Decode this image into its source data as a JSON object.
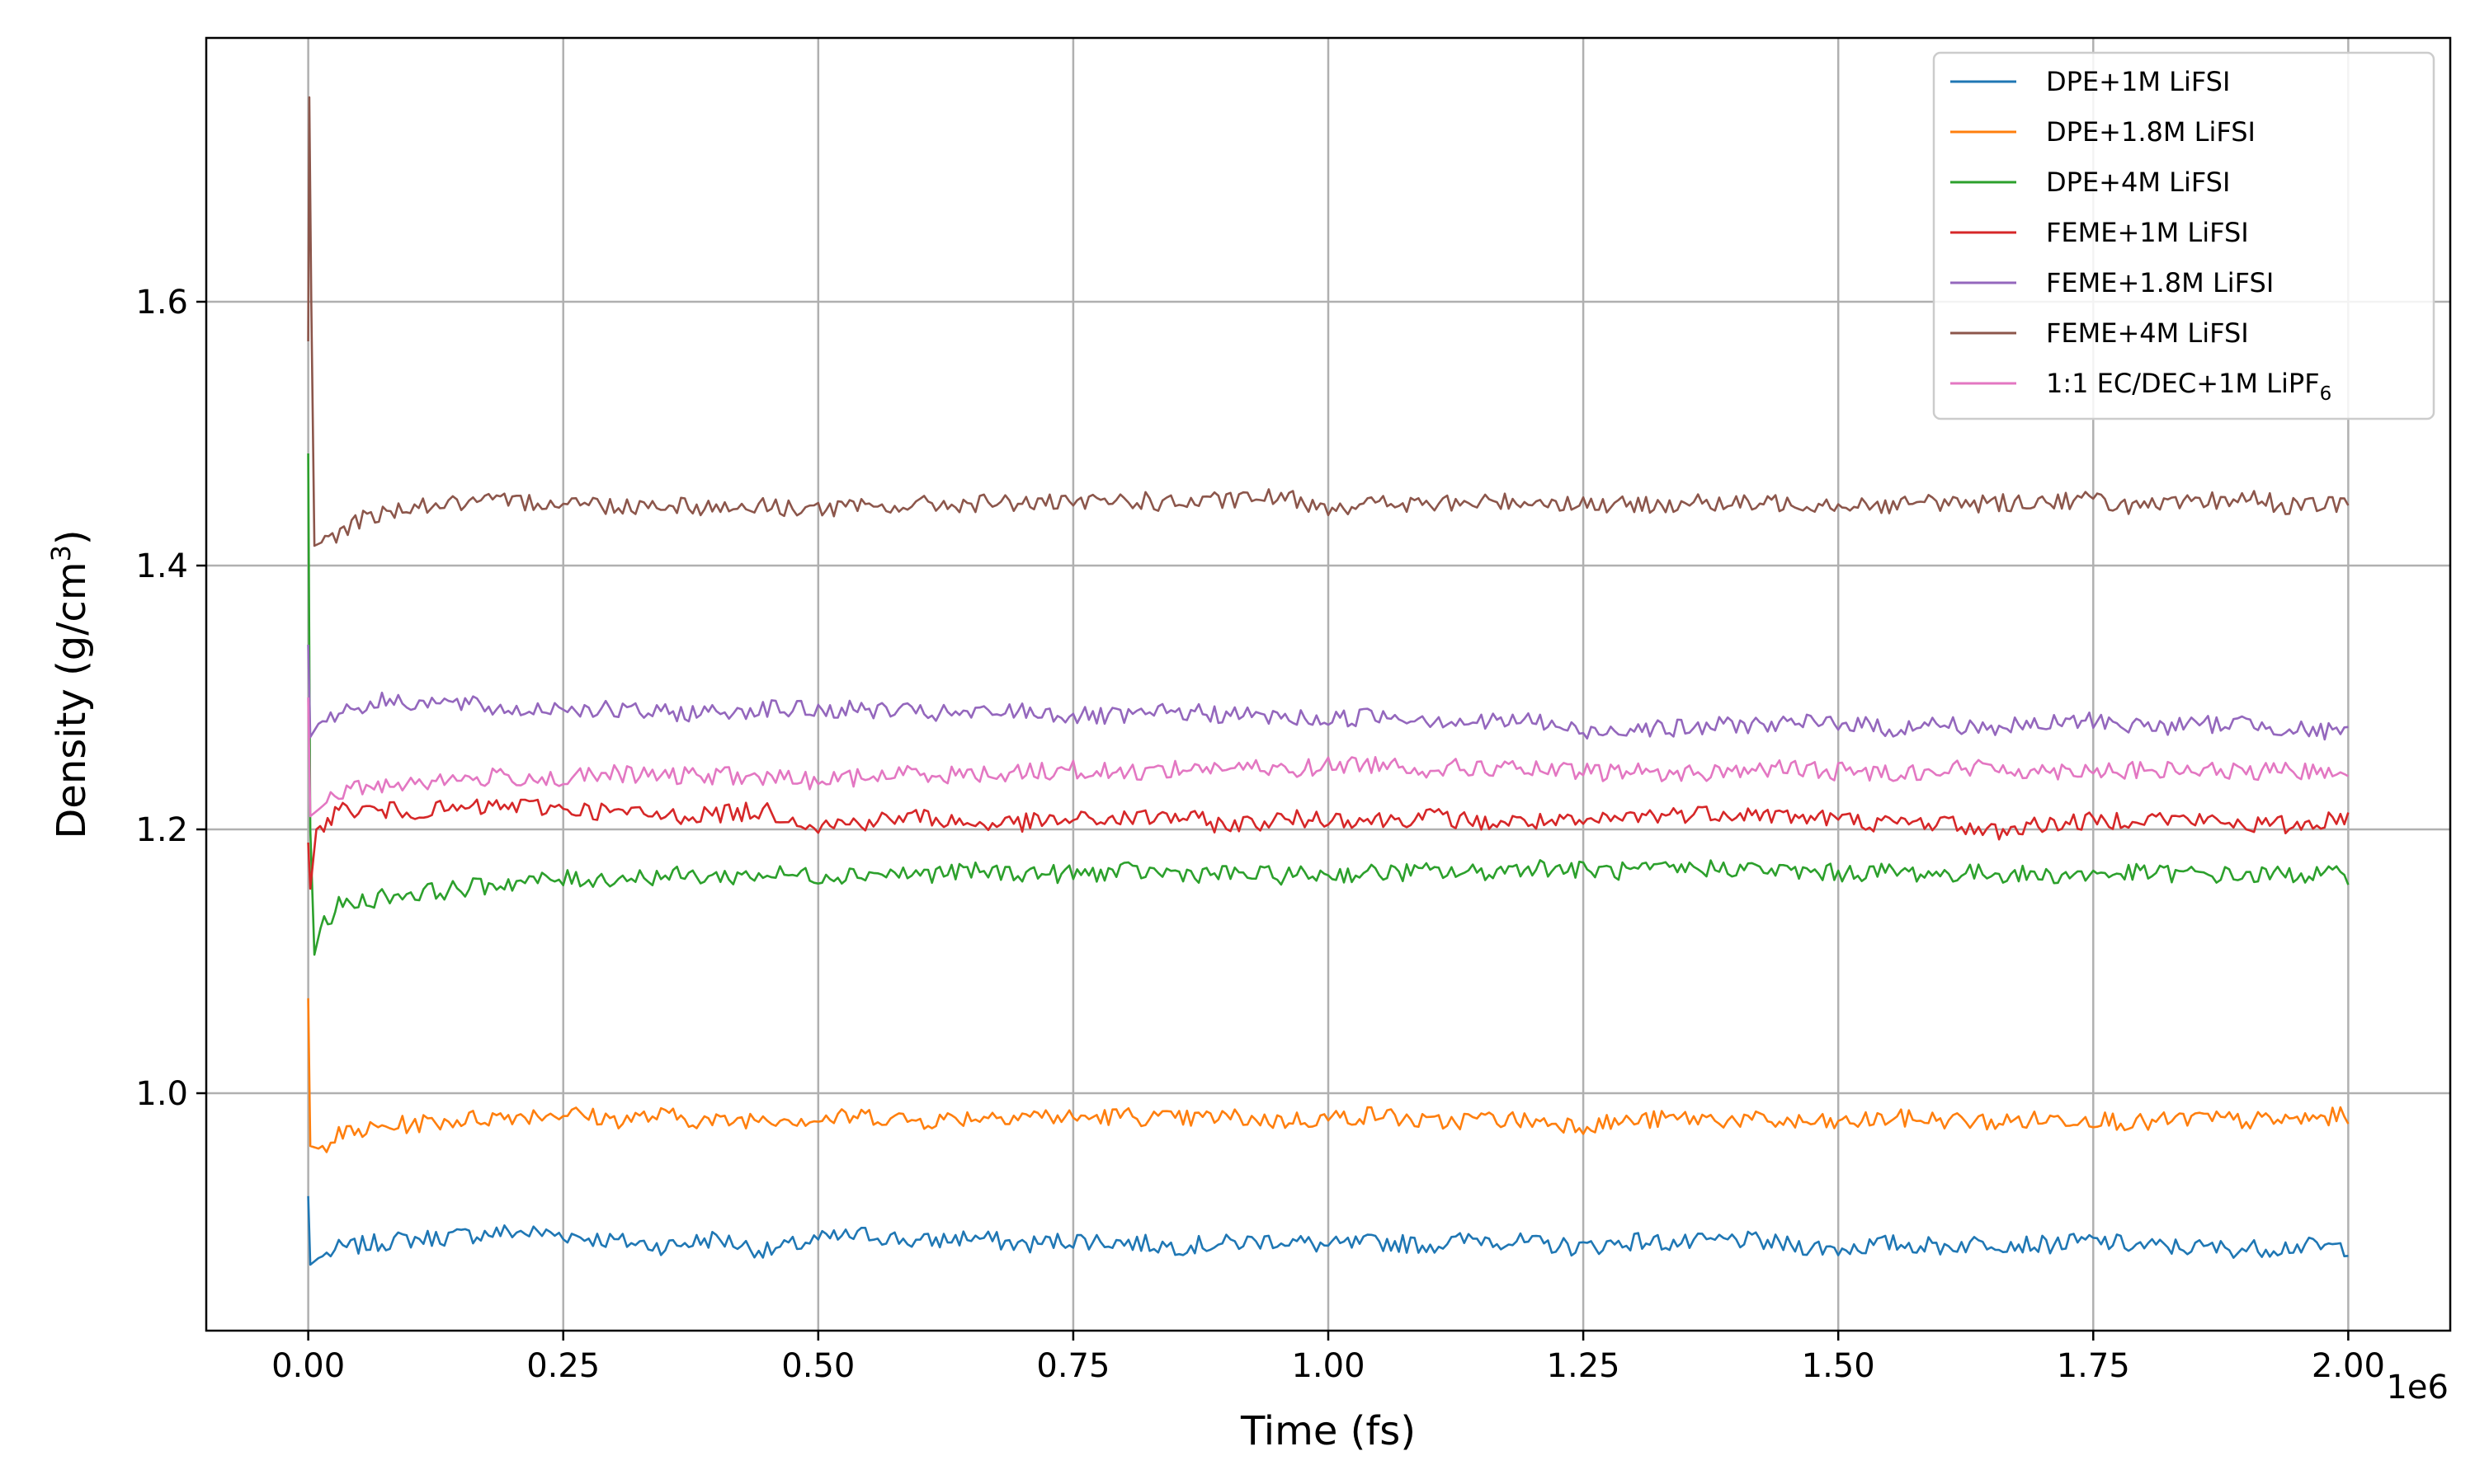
{
  "chart_data": {
    "type": "line",
    "title": "",
    "xlabel": "Time (fs)",
    "ylabel_main": "Density (g/cm",
    "ylabel_sup": "3",
    "ylabel_end": ")",
    "x_offset_label": "1e6",
    "xlim": [
      -0.1,
      2.1
    ],
    "ylim": [
      0.82,
      1.8
    ],
    "x_ticks": [
      {
        "value": 0.0,
        "label": "0.00"
      },
      {
        "value": 0.25,
        "label": "0.25"
      },
      {
        "value": 0.5,
        "label": "0.50"
      },
      {
        "value": 0.75,
        "label": "0.75"
      },
      {
        "value": 1.0,
        "label": "1.00"
      },
      {
        "value": 1.25,
        "label": "1.25"
      },
      {
        "value": 1.5,
        "label": "1.50"
      },
      {
        "value": 1.75,
        "label": "1.75"
      },
      {
        "value": 2.0,
        "label": "2.00"
      }
    ],
    "y_ticks": [
      {
        "value": 1.0,
        "label": "1.0"
      },
      {
        "value": 1.2,
        "label": "1.2"
      },
      {
        "value": 1.4,
        "label": "1.4"
      },
      {
        "value": 1.6,
        "label": "1.6"
      }
    ],
    "grid": true,
    "legend_position": "top-right",
    "series": [
      {
        "name": "DPE+1M LiFSI",
        "color": "#1f77b4",
        "x": [
          0,
          0.002,
          0.01,
          0.03,
          0.08,
          0.15,
          0.2,
          0.25,
          0.3,
          0.35,
          0.4,
          0.45,
          0.5,
          0.55,
          0.6,
          0.65,
          0.7,
          0.75,
          0.8,
          0.85,
          0.9,
          0.95,
          1.0,
          1.05,
          1.1,
          1.15,
          1.2,
          1.25,
          1.3,
          1.35,
          1.4,
          1.45,
          1.5,
          1.55,
          1.6,
          1.65,
          1.7,
          1.75,
          1.8,
          1.85,
          1.9,
          1.95,
          2.0
        ],
        "y": [
          0.922,
          0.87,
          0.875,
          0.882,
          0.888,
          0.892,
          0.895,
          0.893,
          0.888,
          0.884,
          0.89,
          0.88,
          0.889,
          0.893,
          0.887,
          0.891,
          0.885,
          0.889,
          0.887,
          0.884,
          0.886,
          0.889,
          0.884,
          0.887,
          0.885,
          0.89,
          0.886,
          0.883,
          0.888,
          0.886,
          0.889,
          0.885,
          0.882,
          0.886,
          0.884,
          0.887,
          0.885,
          0.888,
          0.884,
          0.883,
          0.882,
          0.884,
          0.883
        ]
      },
      {
        "name": "DPE+1.8M LiFSI",
        "color": "#ff7f0e",
        "x": [
          0,
          0.002,
          0.01,
          0.03,
          0.08,
          0.15,
          0.2,
          0.25,
          0.3,
          0.35,
          0.4,
          0.45,
          0.5,
          0.55,
          0.6,
          0.65,
          0.7,
          0.75,
          0.8,
          0.85,
          0.9,
          0.95,
          1.0,
          1.05,
          1.1,
          1.15,
          1.2,
          1.25,
          1.3,
          1.35,
          1.4,
          1.45,
          1.5,
          1.55,
          1.6,
          1.65,
          1.7,
          1.75,
          1.8,
          1.85,
          1.9,
          1.95,
          2.0
        ],
        "y": [
          1.072,
          0.96,
          0.958,
          0.968,
          0.975,
          0.98,
          0.983,
          0.985,
          0.98,
          0.983,
          0.978,
          0.982,
          0.98,
          0.983,
          0.979,
          0.982,
          0.984,
          0.981,
          0.983,
          0.98,
          0.982,
          0.979,
          0.981,
          0.984,
          0.977,
          0.981,
          0.979,
          0.976,
          0.979,
          0.981,
          0.98,
          0.978,
          0.977,
          0.981,
          0.98,
          0.978,
          0.98,
          0.981,
          0.977,
          0.981,
          0.979,
          0.98,
          0.983
        ]
      },
      {
        "name": "DPE+4M LiFSI",
        "color": "#2ca02c",
        "x": [
          0,
          0.002,
          0.006,
          0.012,
          0.03,
          0.08,
          0.15,
          0.2,
          0.25,
          0.3,
          0.35,
          0.4,
          0.45,
          0.5,
          0.55,
          0.6,
          0.65,
          0.7,
          0.75,
          0.8,
          0.85,
          0.9,
          0.95,
          1.0,
          1.05,
          1.1,
          1.15,
          1.2,
          1.25,
          1.3,
          1.35,
          1.4,
          1.45,
          1.5,
          1.55,
          1.6,
          1.65,
          1.7,
          1.75,
          1.8,
          1.85,
          1.9,
          1.95,
          2.0
        ],
        "y": [
          1.485,
          1.2,
          1.105,
          1.125,
          1.142,
          1.15,
          1.155,
          1.16,
          1.162,
          1.163,
          1.165,
          1.164,
          1.166,
          1.165,
          1.167,
          1.166,
          1.168,
          1.167,
          1.166,
          1.168,
          1.167,
          1.166,
          1.165,
          1.166,
          1.167,
          1.168,
          1.167,
          1.172,
          1.169,
          1.168,
          1.17,
          1.171,
          1.168,
          1.167,
          1.168,
          1.166,
          1.167,
          1.165,
          1.166,
          1.167,
          1.166,
          1.165,
          1.166,
          1.165
        ]
      },
      {
        "name": "FEME+1M LiFSI",
        "color": "#d62728",
        "x": [
          0,
          0.002,
          0.008,
          0.03,
          0.08,
          0.15,
          0.2,
          0.25,
          0.3,
          0.35,
          0.4,
          0.45,
          0.5,
          0.55,
          0.6,
          0.65,
          0.7,
          0.75,
          0.8,
          0.85,
          0.9,
          0.95,
          1.0,
          1.05,
          1.1,
          1.15,
          1.2,
          1.25,
          1.3,
          1.35,
          1.4,
          1.45,
          1.5,
          1.55,
          1.6,
          1.65,
          1.7,
          1.75,
          1.8,
          1.85,
          1.9,
          1.95,
          2.0
        ],
        "y": [
          1.19,
          1.155,
          1.2,
          1.215,
          1.214,
          1.215,
          1.218,
          1.216,
          1.213,
          1.21,
          1.212,
          1.214,
          1.203,
          1.206,
          1.21,
          1.204,
          1.205,
          1.207,
          1.208,
          1.21,
          1.203,
          1.207,
          1.209,
          1.207,
          1.21,
          1.205,
          1.206,
          1.204,
          1.21,
          1.212,
          1.213,
          1.21,
          1.208,
          1.204,
          1.206,
          1.198,
          1.204,
          1.206,
          1.209,
          1.207,
          1.204,
          1.203,
          1.21
        ]
      },
      {
        "name": "FEME+1.8M LiFSI",
        "color": "#9467bd",
        "x": [
          0,
          0.002,
          0.01,
          0.03,
          0.08,
          0.15,
          0.2,
          0.25,
          0.3,
          0.35,
          0.4,
          0.45,
          0.5,
          0.55,
          0.6,
          0.65,
          0.7,
          0.75,
          0.8,
          0.85,
          0.9,
          0.95,
          1.0,
          1.05,
          1.1,
          1.15,
          1.2,
          1.25,
          1.3,
          1.35,
          1.4,
          1.45,
          1.5,
          1.55,
          1.6,
          1.65,
          1.7,
          1.75,
          1.8,
          1.85,
          1.9,
          1.95,
          2.0
        ],
        "y": [
          1.34,
          1.27,
          1.28,
          1.29,
          1.298,
          1.295,
          1.29,
          1.293,
          1.29,
          1.288,
          1.289,
          1.292,
          1.29,
          1.291,
          1.288,
          1.287,
          1.29,
          1.286,
          1.285,
          1.289,
          1.287,
          1.285,
          1.283,
          1.287,
          1.284,
          1.281,
          1.283,
          1.273,
          1.278,
          1.276,
          1.28,
          1.279,
          1.282,
          1.276,
          1.28,
          1.277,
          1.279,
          1.283,
          1.278,
          1.279,
          1.281,
          1.276,
          1.272
        ]
      },
      {
        "name": "FEME+4M LiFSI",
        "color": "#8c564b",
        "x": [
          0,
          0.001,
          0.003,
          0.006,
          0.02,
          0.05,
          0.1,
          0.15,
          0.2,
          0.25,
          0.3,
          0.35,
          0.4,
          0.45,
          0.5,
          0.55,
          0.6,
          0.65,
          0.7,
          0.75,
          0.8,
          0.85,
          0.9,
          0.95,
          1.0,
          1.05,
          1.1,
          1.15,
          1.2,
          1.25,
          1.3,
          1.35,
          1.4,
          1.45,
          1.5,
          1.55,
          1.6,
          1.65,
          1.7,
          1.75,
          1.8,
          1.85,
          1.9,
          1.95,
          2.0
        ],
        "y": [
          1.57,
          1.755,
          1.6,
          1.415,
          1.42,
          1.435,
          1.445,
          1.447,
          1.448,
          1.449,
          1.445,
          1.447,
          1.444,
          1.445,
          1.443,
          1.444,
          1.446,
          1.447,
          1.448,
          1.446,
          1.45,
          1.447,
          1.449,
          1.452,
          1.445,
          1.447,
          1.446,
          1.448,
          1.449,
          1.447,
          1.445,
          1.448,
          1.446,
          1.448,
          1.447,
          1.446,
          1.448,
          1.447,
          1.449,
          1.45,
          1.444,
          1.447,
          1.452,
          1.444,
          1.448
        ]
      },
      {
        "name_html": [
          "1:1 EC/DEC+1M LiPF",
          "6"
        ],
        "color": "#e377c2",
        "x": [
          0,
          0.002,
          0.01,
          0.03,
          0.08,
          0.15,
          0.2,
          0.25,
          0.3,
          0.35,
          0.4,
          0.45,
          0.5,
          0.55,
          0.6,
          0.65,
          0.7,
          0.75,
          0.8,
          0.85,
          0.9,
          0.95,
          1.0,
          1.05,
          1.1,
          1.15,
          1.2,
          1.25,
          1.3,
          1.35,
          1.4,
          1.45,
          1.5,
          1.55,
          1.6,
          1.65,
          1.7,
          1.75,
          1.8,
          1.85,
          1.9,
          1.95,
          2.0
        ],
        "y": [
          1.3,
          1.21,
          1.215,
          1.228,
          1.235,
          1.238,
          1.24,
          1.238,
          1.242,
          1.24,
          1.241,
          1.239,
          1.237,
          1.24,
          1.243,
          1.241,
          1.244,
          1.245,
          1.243,
          1.246,
          1.247,
          1.245,
          1.248,
          1.25,
          1.246,
          1.247,
          1.245,
          1.243,
          1.244,
          1.242,
          1.245,
          1.246,
          1.244,
          1.243,
          1.245,
          1.247,
          1.244,
          1.246,
          1.244,
          1.245,
          1.243,
          1.244,
          1.246
        ]
      }
    ]
  }
}
